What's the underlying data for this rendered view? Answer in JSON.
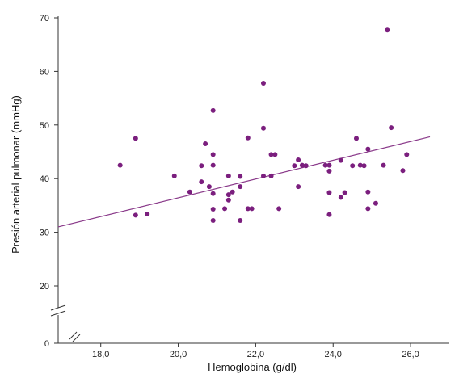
{
  "chart_data": {
    "type": "scatter",
    "title": "",
    "xlabel": "Hemoglobina (g/dl)",
    "ylabel": "Presión arterial pulmonar (mmHg)",
    "xlim": [
      16.9,
      27.0
    ],
    "ylim_scale": [
      20,
      70
    ],
    "y_axis_break": true,
    "y_origin_label": "0",
    "x_ticks": [
      18,
      20,
      22,
      24,
      26
    ],
    "x_tick_labels": [
      "18,0",
      "20,0",
      "22,0",
      "24,0",
      "26,0"
    ],
    "y_ticks": [
      20,
      30,
      40,
      50,
      60,
      70
    ],
    "y_tick_labels": [
      "20",
      "30",
      "40",
      "50",
      "60",
      "70"
    ],
    "grid": false,
    "colors": {
      "points": "#7b1f7e",
      "trendline": "#8a3a8a",
      "axes": "#333333"
    },
    "trendline": {
      "x": [
        16.9,
        26.5
      ],
      "y": [
        31.0,
        47.8
      ]
    },
    "points": [
      [
        18.5,
        42.5
      ],
      [
        18.9,
        33.2
      ],
      [
        18.9,
        47.5
      ],
      [
        19.2,
        33.4
      ],
      [
        19.9,
        40.5
      ],
      [
        20.3,
        37.5
      ],
      [
        20.6,
        39.4
      ],
      [
        20.6,
        42.4
      ],
      [
        20.7,
        46.5
      ],
      [
        20.8,
        38.5
      ],
      [
        20.9,
        32.2
      ],
      [
        20.9,
        34.3
      ],
      [
        20.9,
        37.2
      ],
      [
        20.9,
        42.5
      ],
      [
        20.9,
        44.5
      ],
      [
        20.9,
        52.7
      ],
      [
        21.2,
        34.4
      ],
      [
        21.3,
        36.0
      ],
      [
        21.3,
        37.0
      ],
      [
        21.3,
        40.5
      ],
      [
        21.4,
        37.5
      ],
      [
        21.6,
        32.2
      ],
      [
        21.6,
        38.5
      ],
      [
        21.6,
        40.4
      ],
      [
        21.8,
        34.4
      ],
      [
        21.8,
        47.6
      ],
      [
        21.9,
        34.4
      ],
      [
        22.2,
        40.5
      ],
      [
        22.2,
        49.4
      ],
      [
        22.2,
        57.8
      ],
      [
        22.4,
        40.5
      ],
      [
        22.4,
        44.5
      ],
      [
        22.5,
        44.5
      ],
      [
        22.6,
        34.4
      ],
      [
        23.0,
        42.4
      ],
      [
        23.1,
        38.5
      ],
      [
        23.1,
        43.5
      ],
      [
        23.2,
        42.5
      ],
      [
        23.3,
        42.4
      ],
      [
        23.8,
        42.5
      ],
      [
        23.9,
        33.3
      ],
      [
        23.9,
        37.4
      ],
      [
        23.9,
        41.4
      ],
      [
        23.9,
        42.5
      ],
      [
        24.2,
        36.5
      ],
      [
        24.2,
        43.4
      ],
      [
        24.3,
        37.4
      ],
      [
        24.5,
        42.4
      ],
      [
        24.6,
        47.5
      ],
      [
        24.7,
        42.5
      ],
      [
        24.8,
        42.4
      ],
      [
        24.9,
        34.4
      ],
      [
        24.9,
        37.5
      ],
      [
        24.9,
        45.5
      ],
      [
        25.1,
        35.4
      ],
      [
        25.3,
        42.5
      ],
      [
        25.4,
        67.7
      ],
      [
        25.5,
        49.5
      ],
      [
        25.8,
        41.5
      ],
      [
        25.9,
        44.5
      ]
    ]
  }
}
